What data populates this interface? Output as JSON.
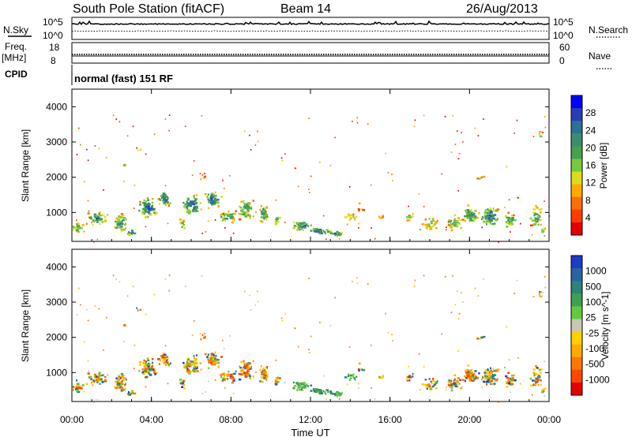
{
  "header": {
    "title": "South Pole Station (fitACF)",
    "beam": "Beam 14",
    "date": "26/Aug/2013"
  },
  "top_panels": {
    "nsky_label": "N.Sky",
    "nsky_ticks": [
      "10^5",
      "10^0"
    ],
    "nsearch_label": "N.Search",
    "nsearch_ticks": [
      "10^5",
      "10^0"
    ],
    "freq_label_1": "Freq.",
    "freq_label_2": "[MHz]",
    "freq_ticks": [
      "18",
      "8"
    ],
    "nave_label": "Nave",
    "nave_ticks": [
      "60",
      "0"
    ],
    "cpid_label": "CPID",
    "cpid_value": "normal (fast) 151 RF"
  },
  "chart_data": [
    {
      "type": "heatmap",
      "name": "power",
      "ylabel": "Slant Range [km]",
      "xlabel": "",
      "ylim": [
        180,
        4500
      ],
      "yticks": [
        "4000",
        "3000",
        "2000",
        "1000"
      ],
      "colorbar_label": "Power [dB]",
      "colorbar_ticks": [
        "28",
        "24",
        "20",
        "16",
        "12",
        "8",
        "4"
      ],
      "colorbar_colors": [
        "#0000ff",
        "#2a3cb4",
        "#2e6e98",
        "#3c8c6e",
        "#46a050",
        "#78c83c",
        "#dcdc1e",
        "#ffaa00",
        "#ff6e00",
        "#ff3c00",
        "#e60000"
      ]
    },
    {
      "type": "heatmap",
      "name": "velocity",
      "ylabel": "Slant Range [km]",
      "xlabel": "Time UT",
      "ylim": [
        180,
        4500
      ],
      "yticks": [
        "4000",
        "3000",
        "2000",
        "1000"
      ],
      "xticks": [
        "00:00",
        "04:00",
        "08:00",
        "12:00",
        "16:00",
        "20:00",
        "00:00"
      ],
      "colorbar_label": "Velocity [m s^-1]",
      "colorbar_ticks": [
        "1000",
        "500",
        "100",
        "25",
        "-25",
        "-100",
        "-500",
        "-1000"
      ],
      "colorbar_colors": [
        "#1e3cc8",
        "#2a64a0",
        "#2e8278",
        "#3ca050",
        "#64c83c",
        "#c8c8b4",
        "#ffd000",
        "#ffaa00",
        "#ff7800",
        "#ff4600",
        "#e60000"
      ]
    }
  ]
}
